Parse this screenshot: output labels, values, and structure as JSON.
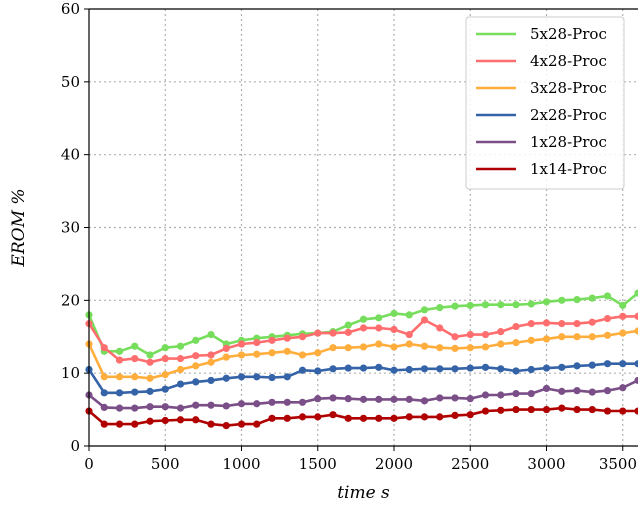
{
  "chart_data": {
    "type": "line",
    "title": "",
    "xlabel": "time s",
    "ylabel": "EROM %",
    "xlim": [
      0,
      3600
    ],
    "ylim": [
      0,
      60
    ],
    "xticks": [
      0,
      500,
      1000,
      1500,
      2000,
      2500,
      3000,
      3500
    ],
    "yticks": [
      0,
      10,
      20,
      30,
      40,
      50,
      60
    ],
    "xtick_labels": [
      "0",
      "500",
      "1000",
      "1500",
      "2000",
      "2500",
      "3000",
      "3500"
    ],
    "ytick_labels": [
      "0",
      "10",
      "20",
      "30",
      "40",
      "50",
      "60"
    ],
    "grid": true,
    "legend_position": "top-right",
    "x": [
      0,
      100,
      200,
      300,
      400,
      500,
      600,
      700,
      800,
      900,
      1000,
      1100,
      1200,
      1300,
      1400,
      1500,
      1600,
      1700,
      1800,
      1900,
      2000,
      2100,
      2200,
      2300,
      2400,
      2500,
      2600,
      2700,
      2800,
      2900,
      3000,
      3100,
      3200,
      3300,
      3400,
      3500,
      3600
    ],
    "series": [
      {
        "name": "5x28-Proc",
        "color": "#77dd5c",
        "values": [
          18.0,
          13.0,
          13.0,
          13.7,
          12.5,
          13.5,
          13.7,
          14.5,
          15.3,
          14.0,
          14.5,
          14.8,
          15.0,
          15.2,
          15.4,
          15.5,
          15.7,
          16.6,
          17.4,
          17.6,
          18.2,
          18.0,
          18.7,
          19.0,
          19.2,
          19.3,
          19.4,
          19.4,
          19.4,
          19.5,
          19.8,
          20.0,
          20.1,
          20.3,
          20.6,
          19.3,
          21.0
        ]
      },
      {
        "name": "4x28-Proc",
        "color": "#ff6e6e",
        "values": [
          16.8,
          13.5,
          11.8,
          12.0,
          11.5,
          12.0,
          12.0,
          12.4,
          12.5,
          13.4,
          14.0,
          14.2,
          14.5,
          14.8,
          15.0,
          15.5,
          15.5,
          15.6,
          16.2,
          16.2,
          16.0,
          15.3,
          17.3,
          16.2,
          15.0,
          15.3,
          15.3,
          15.7,
          16.4,
          16.8,
          16.9,
          16.8,
          16.8,
          17.0,
          17.5,
          17.8,
          17.8
        ]
      },
      {
        "name": "3x28-Proc",
        "color": "#ffae3e",
        "values": [
          14.0,
          9.5,
          9.5,
          9.5,
          9.3,
          9.8,
          10.5,
          11.0,
          11.5,
          12.2,
          12.5,
          12.6,
          12.8,
          13.0,
          12.5,
          12.8,
          13.5,
          13.5,
          13.6,
          14.0,
          13.6,
          14.0,
          13.7,
          13.5,
          13.4,
          13.5,
          13.6,
          14.0,
          14.2,
          14.5,
          14.7,
          15.0,
          15.0,
          15.0,
          15.2,
          15.5,
          15.8
        ]
      },
      {
        "name": "2x28-Proc",
        "color": "#3463a8",
        "values": [
          10.5,
          7.3,
          7.3,
          7.4,
          7.5,
          7.8,
          8.5,
          8.8,
          9.0,
          9.3,
          9.5,
          9.5,
          9.4,
          9.5,
          10.4,
          10.3,
          10.6,
          10.7,
          10.7,
          10.8,
          10.4,
          10.5,
          10.6,
          10.6,
          10.6,
          10.7,
          10.8,
          10.6,
          10.3,
          10.5,
          10.7,
          10.8,
          11.0,
          11.1,
          11.3,
          11.3,
          11.3
        ]
      },
      {
        "name": "1x28-Proc",
        "color": "#7a4e87",
        "values": [
          7.0,
          5.3,
          5.2,
          5.2,
          5.4,
          5.4,
          5.2,
          5.6,
          5.6,
          5.5,
          5.8,
          5.8,
          6.0,
          6.0,
          6.0,
          6.5,
          6.6,
          6.5,
          6.4,
          6.4,
          6.4,
          6.4,
          6.2,
          6.6,
          6.6,
          6.5,
          7.0,
          7.0,
          7.2,
          7.2,
          7.9,
          7.5,
          7.6,
          7.4,
          7.6,
          8.0,
          9.0
        ]
      },
      {
        "name": "1x14-Proc",
        "color": "#b00000",
        "values": [
          4.8,
          3.0,
          3.0,
          3.0,
          3.4,
          3.5,
          3.6,
          3.6,
          3.0,
          2.8,
          3.0,
          3.0,
          3.8,
          3.8,
          4.0,
          4.0,
          4.3,
          3.8,
          3.8,
          3.8,
          3.8,
          4.0,
          4.0,
          4.0,
          4.2,
          4.3,
          4.8,
          4.9,
          5.0,
          5.0,
          5.0,
          5.2,
          5.0,
          5.0,
          4.8,
          4.8,
          4.8
        ]
      }
    ]
  }
}
